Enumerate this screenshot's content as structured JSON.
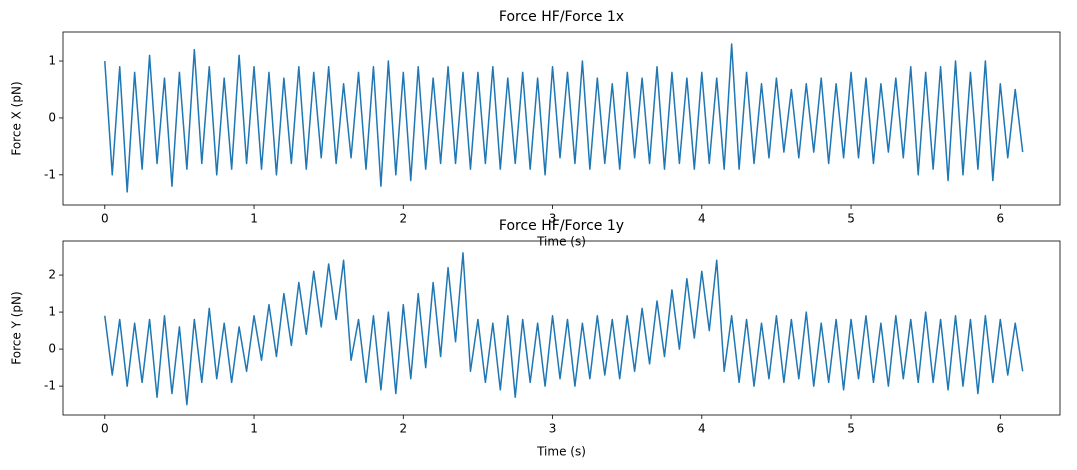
{
  "chart_data": [
    {
      "type": "line",
      "title": "Force HF/Force 1x",
      "xlabel": "Time (s)",
      "ylabel": "Force X (pN)",
      "x": [
        0,
        0.05,
        0.1,
        0.15,
        0.2,
        0.25,
        0.3,
        0.35,
        0.4,
        0.45,
        0.5,
        0.55,
        0.6,
        0.65,
        0.7,
        0.75,
        0.8,
        0.85,
        0.9,
        0.95,
        1,
        1.05,
        1.1,
        1.15,
        1.2,
        1.25,
        1.3,
        1.35,
        1.4,
        1.45,
        1.5,
        1.55,
        1.6,
        1.65,
        1.7,
        1.75,
        1.8,
        1.85,
        1.9,
        1.95,
        2,
        2.05,
        2.1,
        2.15,
        2.2,
        2.25,
        2.3,
        2.35,
        2.4,
        2.45,
        2.5,
        2.55,
        2.6,
        2.65,
        2.7,
        2.75,
        2.8,
        2.85,
        2.9,
        2.95,
        3,
        3.05,
        3.1,
        3.15,
        3.2,
        3.25,
        3.3,
        3.35,
        3.4,
        3.45,
        3.5,
        3.55,
        3.6,
        3.65,
        3.7,
        3.75,
        3.8,
        3.85,
        3.9,
        3.95,
        4,
        4.05,
        4.1,
        4.15,
        4.2,
        4.25,
        4.3,
        4.35,
        4.4,
        4.45,
        4.5,
        4.55,
        4.6,
        4.65,
        4.7,
        4.75,
        4.8,
        4.85,
        4.9,
        4.95,
        5,
        5.05,
        5.1,
        5.15,
        5.2,
        5.25,
        5.3,
        5.35,
        5.4,
        5.45,
        5.5,
        5.55,
        5.6,
        5.65,
        5.7,
        5.75,
        5.8,
        5.85,
        5.9,
        5.95,
        6,
        6.05,
        6.1,
        6.15
      ],
      "series": [
        {
          "name": "Force 1x",
          "color": "#1f77b4",
          "values": [
            1.0,
            -1.0,
            0.9,
            -1.3,
            0.8,
            -0.9,
            1.1,
            -0.8,
            0.7,
            -1.2,
            0.8,
            -0.9,
            1.2,
            -0.8,
            0.9,
            -1.0,
            0.7,
            -0.9,
            1.1,
            -0.8,
            0.9,
            -0.9,
            0.8,
            -1.0,
            0.7,
            -0.8,
            0.9,
            -0.9,
            0.8,
            -0.7,
            0.9,
            -0.8,
            0.6,
            -0.7,
            0.8,
            -0.9,
            0.9,
            -1.2,
            1.0,
            -1.0,
            0.8,
            -1.1,
            0.9,
            -0.9,
            0.7,
            -0.8,
            0.9,
            -0.8,
            0.8,
            -0.9,
            0.8,
            -0.8,
            0.9,
            -0.9,
            0.7,
            -0.8,
            0.8,
            -0.9,
            0.7,
            -1.0,
            0.9,
            -0.7,
            0.8,
            -0.8,
            1.0,
            -0.9,
            0.7,
            -0.8,
            0.6,
            -0.9,
            0.8,
            -0.7,
            0.7,
            -0.8,
            0.9,
            -0.9,
            0.8,
            -0.8,
            0.7,
            -0.9,
            0.8,
            -0.8,
            0.7,
            -0.9,
            1.3,
            -0.9,
            0.8,
            -0.8,
            0.6,
            -0.7,
            0.7,
            -0.6,
            0.5,
            -0.7,
            0.6,
            -0.6,
            0.7,
            -0.8,
            0.6,
            -0.7,
            0.8,
            -0.7,
            0.7,
            -0.8,
            0.6,
            -0.6,
            0.7,
            -0.7,
            0.9,
            -1.0,
            0.8,
            -0.9,
            0.9,
            -1.1,
            1.0,
            -1.0,
            0.8,
            -0.9,
            1.0,
            -1.1,
            0.6,
            -0.7,
            0.5,
            -0.6
          ]
        }
      ],
      "xlim": [
        -0.28,
        6.4
      ],
      "ylim": [
        -1.53,
        1.51
      ],
      "xticks": [
        0,
        1,
        2,
        3,
        4,
        5,
        6
      ],
      "yticks": [
        -1,
        0,
        1
      ],
      "grid": false
    },
    {
      "type": "line",
      "title": "Force HF/Force 1y",
      "xlabel": "Time (s)",
      "ylabel": "Force Y (pN)",
      "x": [
        0,
        0.05,
        0.1,
        0.15,
        0.2,
        0.25,
        0.3,
        0.35,
        0.4,
        0.45,
        0.5,
        0.55,
        0.6,
        0.65,
        0.7,
        0.75,
        0.8,
        0.85,
        0.9,
        0.95,
        1,
        1.05,
        1.1,
        1.15,
        1.2,
        1.25,
        1.3,
        1.35,
        1.4,
        1.45,
        1.5,
        1.55,
        1.6,
        1.65,
        1.7,
        1.75,
        1.8,
        1.85,
        1.9,
        1.95,
        2,
        2.05,
        2.1,
        2.15,
        2.2,
        2.25,
        2.3,
        2.35,
        2.4,
        2.45,
        2.5,
        2.55,
        2.6,
        2.65,
        2.7,
        2.75,
        2.8,
        2.85,
        2.9,
        2.95,
        3,
        3.05,
        3.1,
        3.15,
        3.2,
        3.25,
        3.3,
        3.35,
        3.4,
        3.45,
        3.5,
        3.55,
        3.6,
        3.65,
        3.7,
        3.75,
        3.8,
        3.85,
        3.9,
        3.95,
        4,
        4.05,
        4.1,
        4.15,
        4.2,
        4.25,
        4.3,
        4.35,
        4.4,
        4.45,
        4.5,
        4.55,
        4.6,
        4.65,
        4.7,
        4.75,
        4.8,
        4.85,
        4.9,
        4.95,
        5,
        5.05,
        5.1,
        5.15,
        5.2,
        5.25,
        5.3,
        5.35,
        5.4,
        5.45,
        5.5,
        5.55,
        5.6,
        5.65,
        5.7,
        5.75,
        5.8,
        5.85,
        5.9,
        5.95,
        6,
        6.05,
        6.1,
        6.15
      ],
      "series": [
        {
          "name": "Force 1y",
          "color": "#1f77b4",
          "values": [
            0.9,
            -0.7,
            0.8,
            -1.0,
            0.7,
            -0.9,
            0.8,
            -1.3,
            0.9,
            -1.2,
            0.6,
            -1.5,
            0.8,
            -0.9,
            1.1,
            -0.8,
            0.7,
            -0.9,
            0.6,
            -0.6,
            0.9,
            -0.3,
            1.2,
            -0.2,
            1.5,
            0.1,
            1.8,
            0.4,
            2.1,
            0.6,
            2.3,
            0.8,
            2.4,
            -0.3,
            0.8,
            -0.9,
            0.9,
            -1.1,
            1.0,
            -1.2,
            1.2,
            -0.8,
            1.5,
            -0.5,
            1.8,
            -0.2,
            2.2,
            0.2,
            2.6,
            -0.6,
            0.8,
            -0.9,
            0.7,
            -1.1,
            0.9,
            -1.3,
            0.8,
            -0.9,
            0.7,
            -1.0,
            0.9,
            -0.8,
            0.8,
            -1.0,
            0.7,
            -0.8,
            0.9,
            -0.7,
            0.8,
            -0.8,
            0.9,
            -0.6,
            1.1,
            -0.4,
            1.3,
            -0.2,
            1.6,
            0.0,
            1.9,
            0.3,
            2.1,
            0.5,
            2.4,
            -0.6,
            0.9,
            -0.9,
            0.8,
            -1.0,
            0.7,
            -0.8,
            0.9,
            -0.9,
            0.8,
            -0.8,
            1.0,
            -1.0,
            0.7,
            -0.9,
            0.8,
            -1.1,
            0.8,
            -0.8,
            0.9,
            -0.9,
            0.7,
            -1.0,
            0.9,
            -0.8,
            0.8,
            -0.9,
            1.0,
            -0.9,
            0.8,
            -1.1,
            0.9,
            -1.0,
            0.8,
            -1.2,
            0.9,
            -0.9,
            0.8,
            -0.7,
            0.7,
            -0.6
          ]
        }
      ],
      "xlim": [
        -0.28,
        6.4
      ],
      "ylim": [
        -1.78,
        2.92
      ],
      "xticks": [
        0,
        1,
        2,
        3,
        4,
        5,
        6
      ],
      "yticks": [
        -1,
        0,
        1,
        2
      ],
      "grid": false
    }
  ]
}
